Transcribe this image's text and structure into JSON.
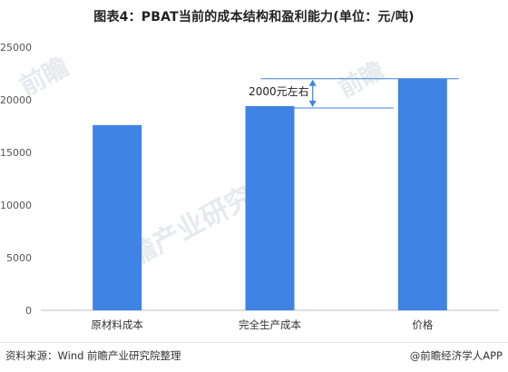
{
  "page": {
    "title": "图表4：PBAT当前的成本结构和盈利能力(单位：元/吨)",
    "source": "资料来源：Wind 前瞻产业研究院整理",
    "credit": "@前瞻经济学人APP",
    "watermark": [
      "前瞻",
      "前瞻产业研究院",
      "前瞻"
    ]
  },
  "colors": {
    "bar": "#3f84e5",
    "axis": "#bfbfbf",
    "annotation": "#3f84e5"
  },
  "chart_data": {
    "type": "bar",
    "title": "图表4：PBAT当前的成本结构和盈利能力(单位：元/吨)",
    "xlabel": "",
    "ylabel": "",
    "categories": [
      "原材料成本",
      "完全生产成本",
      "价格"
    ],
    "values": [
      17600,
      19400,
      22000
    ],
    "ylim": [
      0,
      25000
    ],
    "yticks": [
      0,
      5000,
      10000,
      15000,
      20000,
      25000
    ],
    "grid": false,
    "annotation": {
      "text": "2000元左右",
      "from_value": 19400,
      "to_value": 22000
    }
  }
}
